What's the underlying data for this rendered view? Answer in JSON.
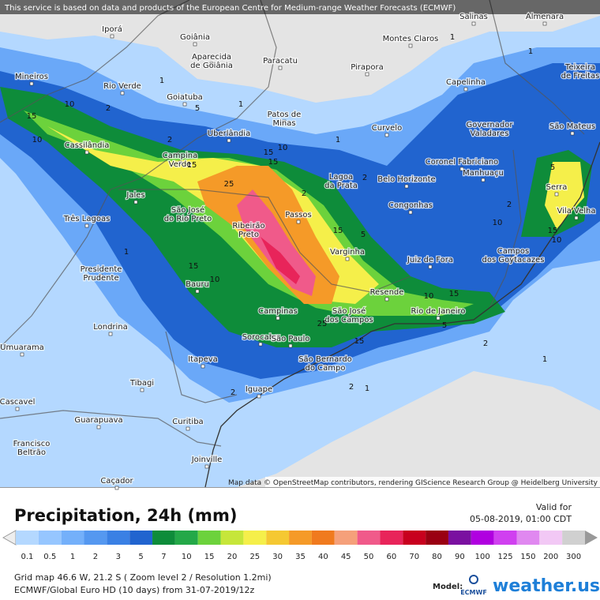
{
  "header": {
    "notice": "This service is based on data and products of the European Centre for Medium-range Weather Forecasts (ECMWF)"
  },
  "map": {
    "attribution": "Map data © OpenStreetMap contributors, rendering GIScience Research Group @ Heidelberg University",
    "cities": [
      {
        "lines": [
          "Iporá"
        ]
      },
      {
        "lines": [
          "Goiânia"
        ]
      },
      {
        "lines": [
          "Aparecida",
          "de Goiânia"
        ]
      },
      {
        "lines": [
          "Paracatu"
        ]
      },
      {
        "lines": [
          "Pirapora"
        ]
      },
      {
        "lines": [
          "Montes Claros"
        ]
      },
      {
        "lines": [
          "Salinas"
        ]
      },
      {
        "lines": [
          "Almenara"
        ]
      },
      {
        "lines": [
          "Mineiros"
        ]
      },
      {
        "lines": [
          "Rio Verde"
        ]
      },
      {
        "lines": [
          "Goiatuba"
        ]
      },
      {
        "lines": [
          "Patos de",
          "Minas"
        ]
      },
      {
        "lines": [
          "Curvelo"
        ]
      },
      {
        "lines": [
          "Capelinha"
        ]
      },
      {
        "lines": [
          "Teixeira",
          "de Freitas"
        ]
      },
      {
        "lines": [
          "Governador",
          "Valadares"
        ]
      },
      {
        "lines": [
          "São Mateus"
        ]
      },
      {
        "lines": [
          "Uberlândia"
        ]
      },
      {
        "lines": [
          "Cassilândia"
        ]
      },
      {
        "lines": [
          "Campina",
          "Verde"
        ]
      },
      {
        "lines": [
          "Coronel Fabriciano"
        ]
      },
      {
        "lines": [
          "Lagoa",
          "da Prata"
        ]
      },
      {
        "lines": [
          "Belo Horizonte"
        ]
      },
      {
        "lines": [
          "Manhuaçu"
        ]
      },
      {
        "lines": [
          "Serra"
        ]
      },
      {
        "lines": [
          "Vila Velha"
        ]
      },
      {
        "lines": [
          "Jales"
        ]
      },
      {
        "lines": [
          "São José",
          "do Rio Preto"
        ]
      },
      {
        "lines": [
          "Congonhas"
        ]
      },
      {
        "lines": [
          "Passos"
        ]
      },
      {
        "lines": [
          "Três Lagoas"
        ]
      },
      {
        "lines": [
          "Ribeirão",
          "Preto"
        ]
      },
      {
        "lines": [
          "Varginha"
        ]
      },
      {
        "lines": [
          "Juiz de Fora"
        ]
      },
      {
        "lines": [
          "Campos",
          "dos Goytacazes"
        ]
      },
      {
        "lines": [
          "Presidente",
          "Prudente"
        ]
      },
      {
        "lines": [
          "Bauru"
        ]
      },
      {
        "lines": [
          "Resende"
        ]
      },
      {
        "lines": [
          "Campinas"
        ]
      },
      {
        "lines": [
          "Rio de Janeiro"
        ]
      },
      {
        "lines": [
          "São José",
          "dos Campos"
        ]
      },
      {
        "lines": [
          "Londrina"
        ]
      },
      {
        "lines": [
          "Sorocaba"
        ]
      },
      {
        "lines": [
          "São Paulo"
        ]
      },
      {
        "lines": [
          "Umuarama"
        ]
      },
      {
        "lines": [
          "São Bernardo",
          "do Campo"
        ]
      },
      {
        "lines": [
          "Itapeva"
        ]
      },
      {
        "lines": [
          "Tibagi"
        ]
      },
      {
        "lines": [
          "Iguape"
        ]
      },
      {
        "lines": [
          "Cascavel"
        ]
      },
      {
        "lines": [
          "Guarapuava"
        ]
      },
      {
        "lines": [
          "Curitiba"
        ]
      },
      {
        "lines": [
          "Francisco",
          "Beltrão"
        ]
      },
      {
        "lines": [
          "Joinville"
        ]
      },
      {
        "lines": [
          "Caçador"
        ]
      }
    ],
    "contour_labels": [
      "1",
      "1",
      "1",
      "1",
      "1",
      "1",
      "1",
      "1",
      "2",
      "2",
      "2",
      "2",
      "2",
      "2",
      "2",
      "2",
      "5",
      "5",
      "5",
      "5",
      "10",
      "10",
      "10",
      "10",
      "10",
      "10",
      "10",
      "15",
      "15",
      "15",
      "15",
      "15",
      "15",
      "15",
      "15",
      "15",
      "25",
      "25",
      "25"
    ]
  },
  "legend": {
    "title": "Precipitation, 24h (mm)",
    "valid_label": "Valid for",
    "valid_time": "05-08-2019, 01:00 CDT",
    "scale": [
      {
        "label": "0.1",
        "color": "#b4d8ff"
      },
      {
        "label": "0.5",
        "color": "#96c6ff"
      },
      {
        "label": "1",
        "color": "#74b0fa"
      },
      {
        "label": "2",
        "color": "#5598f0"
      },
      {
        "label": "3",
        "color": "#3a80e4"
      },
      {
        "label": "5",
        "color": "#2164cf"
      },
      {
        "label": "7",
        "color": "#0e8c3a"
      },
      {
        "label": "10",
        "color": "#24a848"
      },
      {
        "label": "15",
        "color": "#6cd23c"
      },
      {
        "label": "20",
        "color": "#c6e63a"
      },
      {
        "label": "25",
        "color": "#f5ef4a"
      },
      {
        "label": "30",
        "color": "#f5c832"
      },
      {
        "label": "35",
        "color": "#f59a28"
      },
      {
        "label": "40",
        "color": "#f07a1e"
      },
      {
        "label": "45",
        "color": "#f5a07a"
      },
      {
        "label": "50",
        "color": "#f05a8a"
      },
      {
        "label": "60",
        "color": "#e8245a"
      },
      {
        "label": "70",
        "color": "#c8001e"
      },
      {
        "label": "80",
        "color": "#9a0012"
      },
      {
        "label": "90",
        "color": "#7a10a0"
      },
      {
        "label": "100",
        "color": "#b000e0"
      },
      {
        "label": "125",
        "color": "#d040f0"
      },
      {
        "label": "150",
        "color": "#e088f0"
      },
      {
        "label": "200",
        "color": "#f2c8f5"
      },
      {
        "label": "300",
        "color": "#d0d0d0"
      }
    ]
  },
  "footer": {
    "grid": "Grid map 46.6 W, 21.2 S ( Zoom level 2 / Resolution 1.2mi)",
    "model_line": "ECMWF/Global Euro HD (10 days) from 31-07-2019/12z",
    "model_label": "Model:",
    "ecmwf": "ECMWF",
    "brand": "weather.us"
  }
}
